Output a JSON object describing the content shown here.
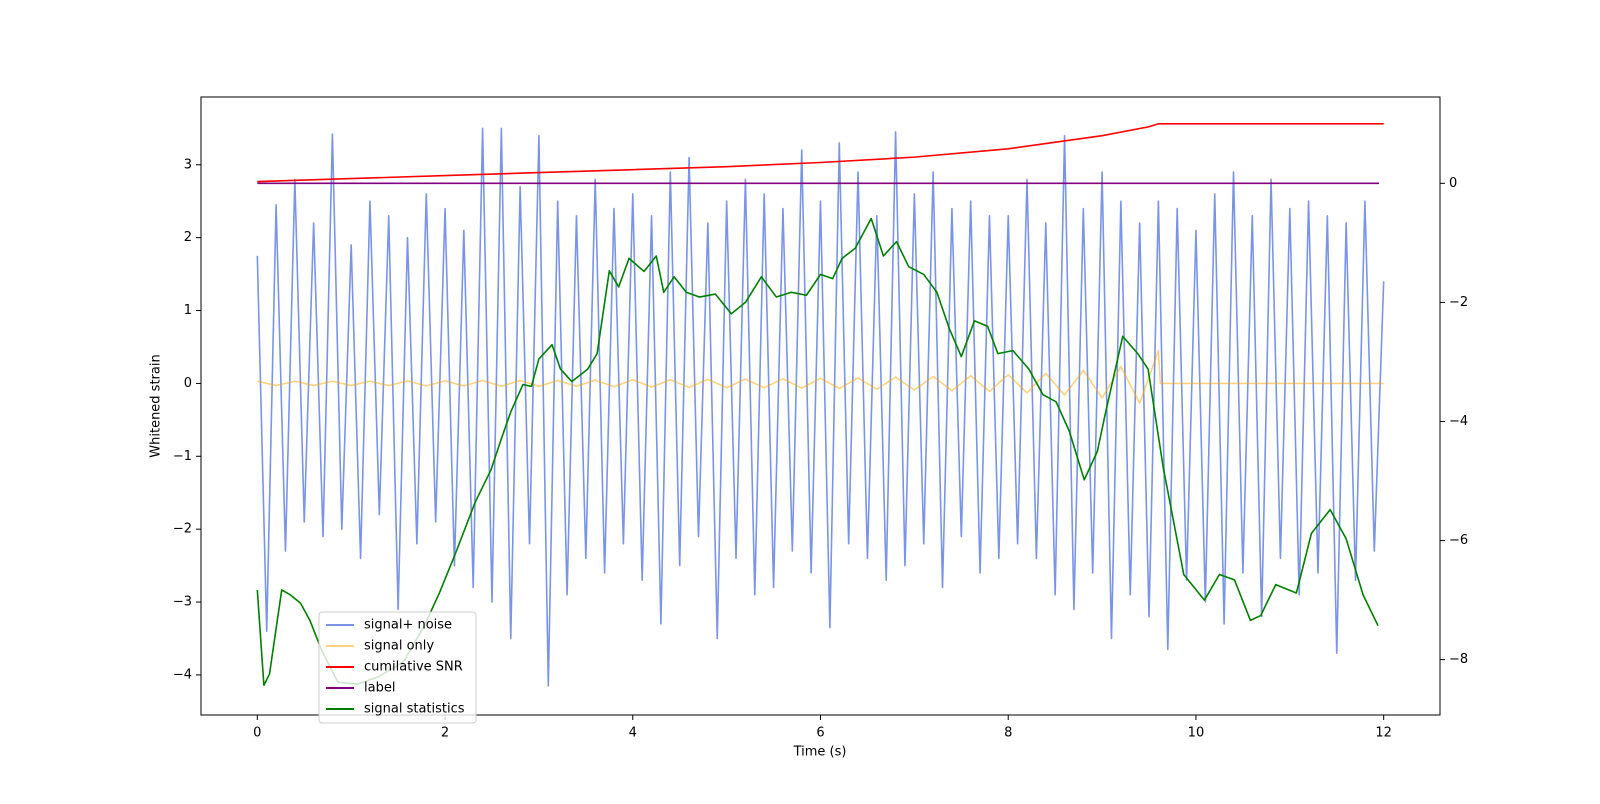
{
  "chart_data": {
    "type": "line",
    "xlabel": "Time (s)",
    "ylabel": "Whitened strain",
    "xlim": [
      -0.6,
      12.6
    ],
    "ylim": [
      -4.55,
      3.93
    ],
    "y2lim": [
      -8.93,
      1.45
    ],
    "xticks": [
      0,
      2,
      4,
      6,
      8,
      10,
      12
    ],
    "yticks": [
      {
        "value": -4,
        "label": "−4"
      },
      {
        "value": -3,
        "label": "−3"
      },
      {
        "value": -2,
        "label": "−2"
      },
      {
        "value": -1,
        "label": "−1"
      },
      0,
      1,
      2,
      3
    ],
    "y2ticks": [
      {
        "value": -8,
        "label": "−8"
      },
      {
        "value": -6,
        "label": "−6"
      },
      {
        "value": -4,
        "label": "−4"
      },
      {
        "value": -2,
        "label": "−2"
      },
      0
    ],
    "legend": "lower left",
    "series": [
      {
        "name": "signal+ noise",
        "color": "#6b88e4",
        "opacity": 0.9,
        "x": [
          0,
          0.1,
          0.2,
          0.3,
          0.4,
          0.5,
          0.6,
          0.7,
          0.8,
          0.9,
          1,
          1.1,
          1.2,
          1.3,
          1.4,
          1.5,
          1.6,
          1.7,
          1.8,
          1.9,
          2,
          2.1,
          2.2,
          2.3,
          2.4,
          2.5,
          2.6,
          2.7,
          2.8,
          2.9,
          3,
          3.1,
          3.2,
          3.3,
          3.4,
          3.5,
          3.6,
          3.7,
          3.8,
          3.9,
          4,
          4.1,
          4.2,
          4.3,
          4.4,
          4.5,
          4.6,
          4.7,
          4.8,
          4.9,
          5,
          5.1,
          5.2,
          5.3,
          5.4,
          5.5,
          5.6,
          5.7,
          5.8,
          5.9,
          6,
          6.1,
          6.2,
          6.3,
          6.4,
          6.5,
          6.6,
          6.7,
          6.8,
          6.9,
          7,
          7.1,
          7.2,
          7.3,
          7.4,
          7.5,
          7.6,
          7.7,
          7.8,
          7.9,
          8,
          8.1,
          8.2,
          8.3,
          8.4,
          8.5,
          8.6,
          8.7,
          8.8,
          8.9,
          9,
          9.1,
          9.2,
          9.3,
          9.4,
          9.5,
          9.6,
          9.7,
          9.8,
          9.9,
          10,
          10.1,
          10.2,
          10.3,
          10.4,
          10.5,
          10.6,
          10.7,
          10.8,
          10.9,
          11,
          11.1,
          11.2,
          11.3,
          11.4,
          11.5,
          11.6,
          11.7,
          11.8,
          11.9,
          12
        ],
        "values": [
          1.75,
          -3.4,
          2.45,
          -2.3,
          2.8,
          -1.9,
          2.2,
          -2.1,
          3.42,
          -2.0,
          1.9,
          -2.4,
          2.5,
          -1.8,
          2.3,
          -3.1,
          2.0,
          -2.2,
          2.6,
          -1.9,
          2.4,
          -2.5,
          2.1,
          -2.8,
          3.5,
          -3.0,
          3.5,
          -3.5,
          2.7,
          -2.2,
          3.4,
          -4.15,
          2.5,
          -2.9,
          2.3,
          -2.4,
          2.8,
          -2.6,
          2.4,
          -2.2,
          2.6,
          -2.7,
          2.3,
          -3.3,
          2.9,
          -2.5,
          3.1,
          -2.1,
          2.2,
          -3.5,
          2.5,
          -2.4,
          2.8,
          -2.9,
          2.6,
          -2.8,
          2.4,
          -2.3,
          3.2,
          -2.6,
          2.5,
          -3.35,
          3.3,
          -2.2,
          2.9,
          -2.4,
          2.3,
          -2.7,
          3.45,
          -2.5,
          2.6,
          -2.2,
          2.9,
          -2.8,
          2.4,
          -2.1,
          2.5,
          -2.6,
          2.3,
          -2.4,
          2.3,
          -2.2,
          2.8,
          -2.4,
          2.2,
          -2.9,
          3.4,
          -3.1,
          2.4,
          -2.6,
          2.9,
          -3.5,
          2.5,
          -2.9,
          2.2,
          -3.2,
          2.5,
          -3.65,
          2.4,
          -2.7,
          2.1,
          -3.0,
          2.6,
          -3.3,
          2.9,
          -2.6,
          2.3,
          -3.2,
          2.8,
          -2.4,
          2.4,
          -2.9,
          2.5,
          -2.6,
          2.3,
          -3.7,
          2.2,
          -2.7,
          2.5,
          -2.3,
          1.4
        ]
      },
      {
        "name": "signal only",
        "color": "#ffa500",
        "opacity": 0.5,
        "x": [
          0,
          0.2,
          0.4,
          0.6,
          0.8,
          1,
          1.2,
          1.4,
          1.6,
          1.8,
          2,
          2.2,
          2.4,
          2.6,
          2.8,
          3,
          3.2,
          3.4,
          3.6,
          3.8,
          4,
          4.2,
          4.4,
          4.6,
          4.8,
          5,
          5.2,
          5.4,
          5.6,
          5.8,
          6,
          6.2,
          6.4,
          6.6,
          6.8,
          7,
          7.2,
          7.4,
          7.6,
          7.8,
          8,
          8.2,
          8.4,
          8.6,
          8.8,
          9,
          9.2,
          9.4,
          9.6,
          9.62,
          12
        ],
        "values": [
          0.03,
          -0.03,
          0.03,
          -0.03,
          0.03,
          -0.03,
          0.03,
          -0.03,
          0.035,
          -0.035,
          0.035,
          -0.035,
          0.04,
          -0.04,
          0.04,
          -0.04,
          0.04,
          -0.04,
          0.045,
          -0.045,
          0.05,
          -0.05,
          0.05,
          -0.055,
          0.055,
          -0.06,
          0.06,
          -0.06,
          0.065,
          -0.065,
          0.07,
          -0.07,
          0.075,
          -0.08,
          0.085,
          -0.09,
          0.095,
          -0.1,
          0.105,
          -0.11,
          0.12,
          -0.13,
          0.14,
          -0.16,
          0.18,
          -0.2,
          0.23,
          -0.27,
          0.45,
          0,
          0
        ]
      },
      {
        "name": "cumilative SNR",
        "color": "#ff0000",
        "axis": "y2",
        "x": [
          0,
          1,
          2,
          3,
          4,
          5,
          6,
          7,
          8,
          9,
          9.5,
          9.6,
          12
        ],
        "values": [
          0.03,
          0.08,
          0.13,
          0.18,
          0.23,
          0.28,
          0.35,
          0.44,
          0.58,
          0.8,
          0.95,
          1.0,
          1.0
        ]
      },
      {
        "name": "label",
        "color": "#800080",
        "axis": "y2",
        "x": [
          0,
          11.95
        ],
        "values": [
          0,
          0
        ]
      },
      {
        "name": "signal statistics",
        "color": "#008000",
        "axis": "y2",
        "x": [
          0,
          0.07,
          0.13,
          0.26,
          0.35,
          0.46,
          0.56,
          0.69,
          0.86,
          1.07,
          1.29,
          1.56,
          1.78,
          1.94,
          2.11,
          2.32,
          2.49,
          2.6,
          2.7,
          2.83,
          2.92,
          3.0,
          3.14,
          3.23,
          3.35,
          3.52,
          3.62,
          3.75,
          3.85,
          3.96,
          4.12,
          4.25,
          4.33,
          4.44,
          4.57,
          4.71,
          4.88,
          5.05,
          5.2,
          5.37,
          5.53,
          5.69,
          5.85,
          6.0,
          6.13,
          6.23,
          6.37,
          6.54,
          6.67,
          6.81,
          6.94,
          7.1,
          7.24,
          7.37,
          7.5,
          7.64,
          7.78,
          7.89,
          8.05,
          8.22,
          8.37,
          8.51,
          8.65,
          8.81,
          8.95,
          9.03,
          9.22,
          9.38,
          9.49,
          9.65,
          9.87,
          10.09,
          10.25,
          10.41,
          10.58,
          10.69,
          10.85,
          11.07,
          11.23,
          11.43,
          11.6,
          11.78,
          11.94
        ],
        "values": [
          -6.83,
          -8.43,
          -8.24,
          -6.83,
          -6.91,
          -7.05,
          -7.34,
          -7.86,
          -8.38,
          -8.41,
          -8.29,
          -8.03,
          -7.43,
          -6.88,
          -6.22,
          -5.36,
          -4.81,
          -4.29,
          -3.84,
          -3.38,
          -3.41,
          -2.95,
          -2.71,
          -3.12,
          -3.33,
          -3.12,
          -2.86,
          -1.47,
          -1.74,
          -1.26,
          -1.48,
          -1.22,
          -1.83,
          -1.57,
          -1.83,
          -1.91,
          -1.86,
          -2.19,
          -2.0,
          -1.57,
          -1.91,
          -1.83,
          -1.88,
          -1.53,
          -1.6,
          -1.26,
          -1.09,
          -0.59,
          -1.22,
          -0.98,
          -1.4,
          -1.53,
          -1.83,
          -2.43,
          -2.91,
          -2.31,
          -2.4,
          -2.86,
          -2.81,
          -3.12,
          -3.55,
          -3.67,
          -4.16,
          -4.98,
          -4.5,
          -3.9,
          -2.57,
          -2.86,
          -3.12,
          -4.76,
          -6.57,
          -7.0,
          -6.57,
          -6.66,
          -7.34,
          -7.26,
          -6.74,
          -6.88,
          -5.88,
          -5.48,
          -5.97,
          -6.91,
          -7.43
        ]
      }
    ]
  }
}
